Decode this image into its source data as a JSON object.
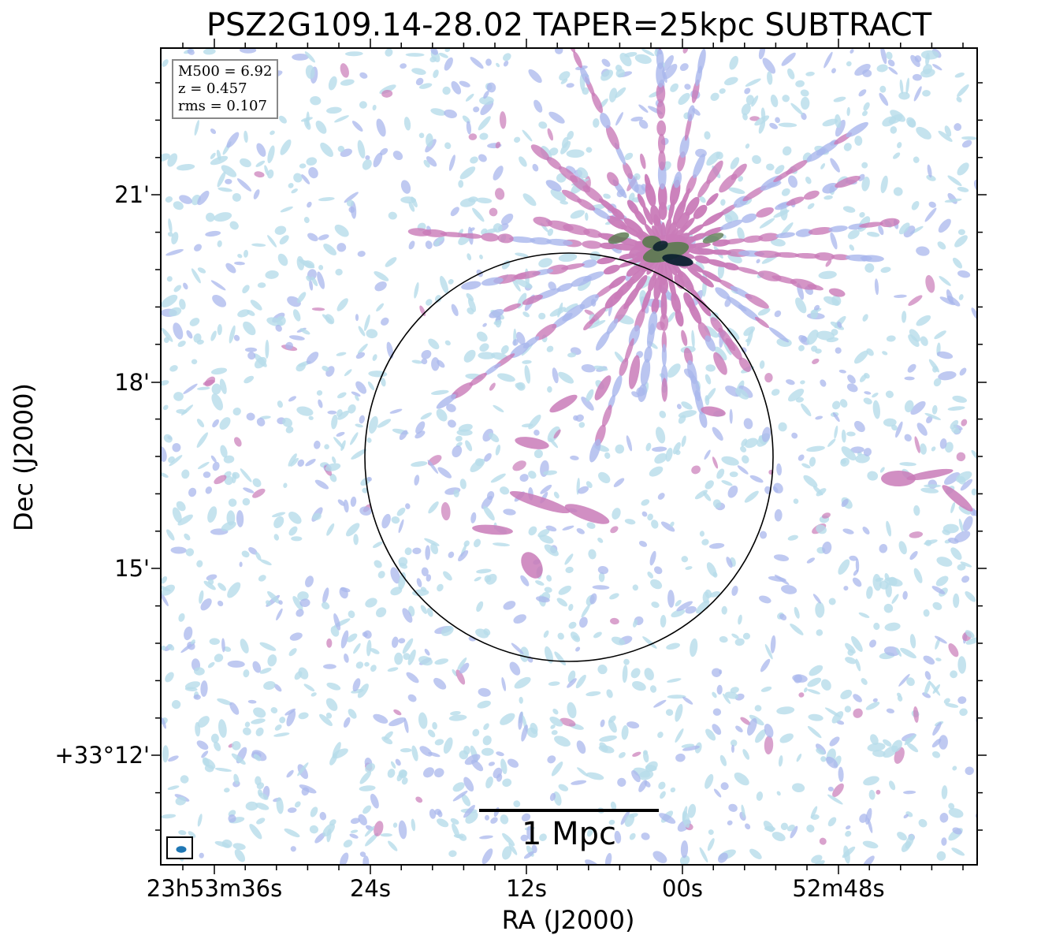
{
  "title": "PSZ2G109.14-28.02 TAPER=25kpc SUBTRACT",
  "info_box": {
    "lines": [
      "M500 = 6.92",
      "z = 0.457",
      "rms = 0.107"
    ]
  },
  "scale_bar": {
    "label": "1 Mpc"
  },
  "axes": {
    "xlabel": "RA (J2000)",
    "ylabel": "Dec (J2000)",
    "x_ticks": [
      "23h53m36s",
      "24s",
      "12s",
      "00s",
      "52m48s"
    ],
    "y_ticks": [
      "21'",
      "18'",
      "15'",
      "+33°12'"
    ]
  },
  "colors": {
    "faint": "#b7dcea",
    "low": "#a9b7ec",
    "mid": "#c97bb8",
    "high": "#5e7a52",
    "peak": "#0c2230",
    "beam": "#1f77b4"
  }
}
